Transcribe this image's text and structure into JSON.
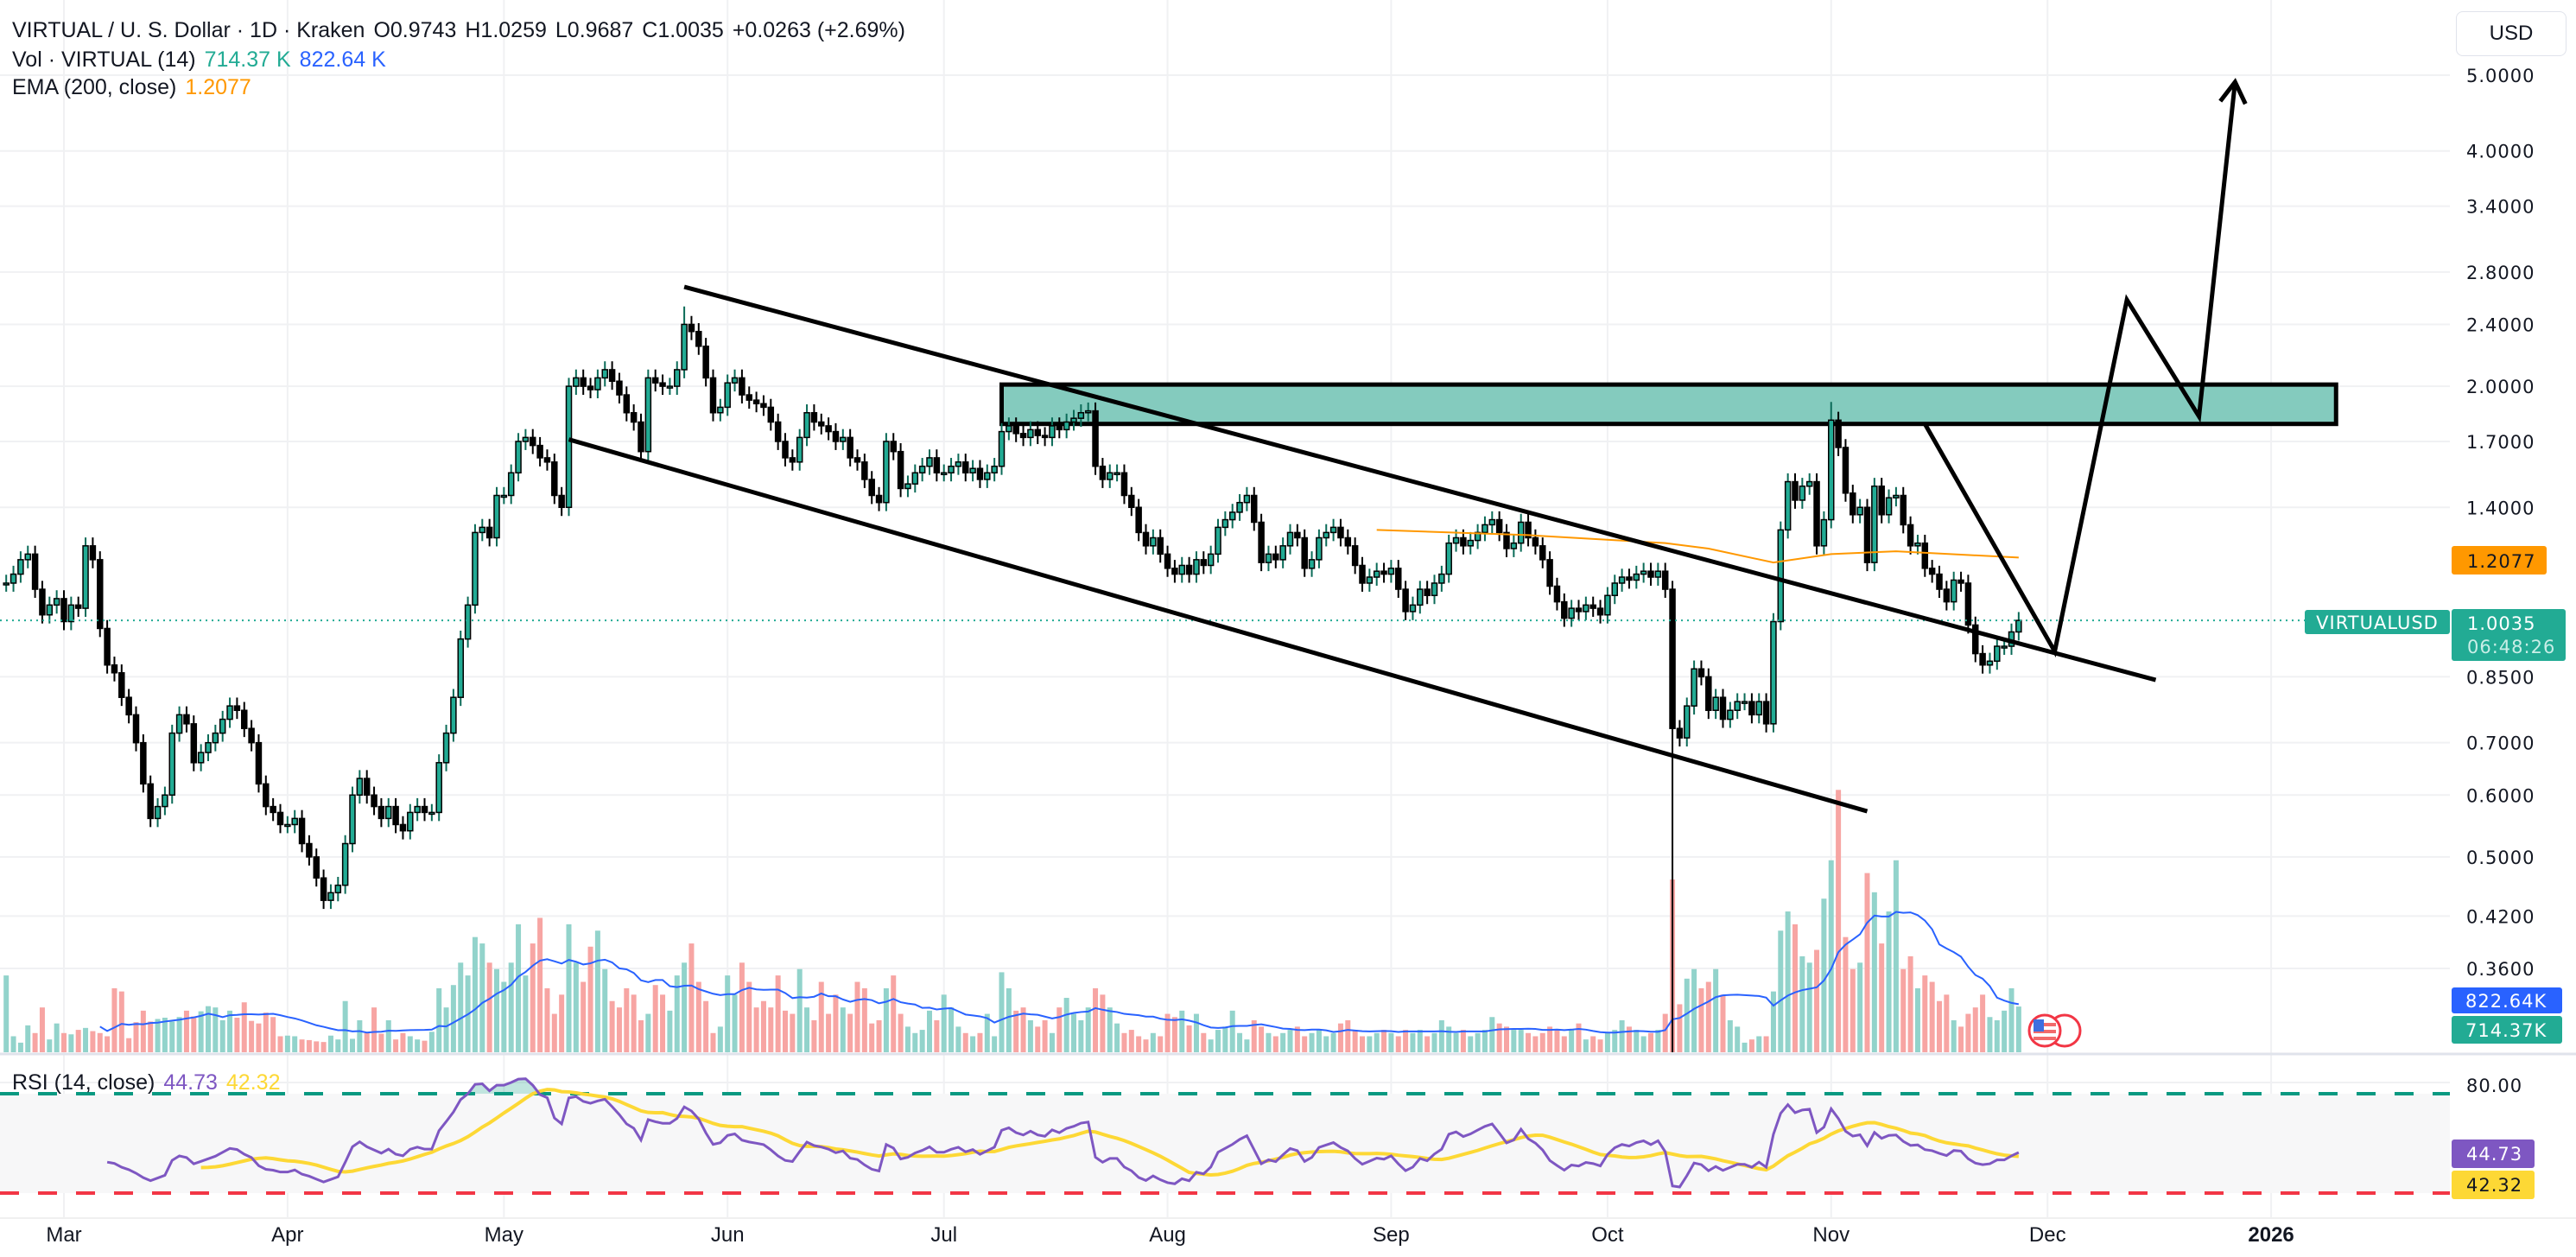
{
  "legend": {
    "symbol": "VIRTUAL / U. S. Dollar · 1D · Kraken",
    "open": "O0.9743",
    "high": "H1.0259",
    "low": "L0.9687",
    "close": "C1.0035",
    "change": "+0.0263 (+2.69%)",
    "vol_title": "Vol · VIRTUAL (14)",
    "vol_value": "714.37 K",
    "vol_ma_value": "822.64 K",
    "ema_title": "EMA (200, close)",
    "ema_value": "1.2077",
    "rsi_title": "RSI (14, close)",
    "rsi_value": "44.73",
    "rsi_ma_value": "42.32"
  },
  "currency_button": "USD",
  "colors": {
    "up": "#22ab94",
    "up_wick": "#0b6b58",
    "down": "#000000",
    "vol_up": "#92d3cb",
    "vol_down": "#f7a5a3",
    "vol_ma": "#2962ff",
    "ema": "#ff9800",
    "rsi": "#7e57c2",
    "rsi_ma": "#fdd835",
    "rsi_upper": "#089981",
    "rsi_lower": "#f23645",
    "zone": "#84cbbe",
    "price_line": "#22ab94"
  },
  "badges": {
    "symbol_tag": "VIRTUALUSD",
    "last_price": "1.0035",
    "countdown": "06:48:26",
    "ema": "1.2077",
    "vol_ma": "822.64K",
    "vol": "714.37K",
    "rsi": "44.73",
    "rsi_ma": "42.32",
    "rsi_level": "80.00"
  },
  "chart_data": {
    "type": "candlestick",
    "title": "VIRTUAL / U. S. Dollar · 1D · Kraken",
    "y_scale": "log",
    "ylim": [
      0.36,
      5.0
    ],
    "grid": true,
    "start_date": "2025-02-21",
    "last_price": 1.0035,
    "price_ticks": [
      "5.0000",
      "4.0000",
      "3.4000",
      "2.8000",
      "2.4000",
      "2.0000",
      "1.7000",
      "1.4000",
      "0.8500",
      "0.7000",
      "0.6000",
      "0.5000",
      "0.4200",
      "0.3600"
    ],
    "time_axis": [
      {
        "label": "Mar",
        "date": "2025-03-01"
      },
      {
        "label": "Apr",
        "date": "2025-04-01"
      },
      {
        "label": "May",
        "date": "2025-05-01"
      },
      {
        "label": "Jun",
        "date": "2025-06-01"
      },
      {
        "label": "Jul",
        "date": "2025-07-01"
      },
      {
        "label": "Aug",
        "date": "2025-08-01"
      },
      {
        "label": "Sep",
        "date": "2025-09-01"
      },
      {
        "label": "Oct",
        "date": "2025-10-01"
      },
      {
        "label": "Nov",
        "date": "2025-11-01"
      },
      {
        "label": "Dec",
        "date": "2025-12-01"
      },
      {
        "label": "2026",
        "date": "2026-01-01"
      }
    ],
    "close": [
      1.12,
      1.15,
      1.2,
      1.22,
      1.1,
      1.02,
      1.05,
      1.07,
      1.0,
      1.05,
      1.04,
      1.25,
      1.2,
      0.98,
      0.88,
      0.86,
      0.8,
      0.76,
      0.7,
      0.62,
      0.56,
      0.58,
      0.6,
      0.72,
      0.76,
      0.74,
      0.66,
      0.68,
      0.7,
      0.72,
      0.75,
      0.78,
      0.77,
      0.73,
      0.7,
      0.62,
      0.58,
      0.57,
      0.55,
      0.55,
      0.56,
      0.52,
      0.5,
      0.47,
      0.44,
      0.45,
      0.46,
      0.52,
      0.6,
      0.63,
      0.6,
      0.58,
      0.56,
      0.58,
      0.55,
      0.54,
      0.57,
      0.58,
      0.57,
      0.57,
      0.66,
      0.72,
      0.8,
      0.95,
      1.05,
      1.3,
      1.32,
      1.28,
      1.45,
      1.45,
      1.55,
      1.7,
      1.72,
      1.68,
      1.62,
      1.6,
      1.45,
      1.4,
      2.0,
      2.05,
      2.0,
      1.98,
      2.05,
      2.1,
      2.03,
      1.95,
      1.85,
      1.8,
      1.65,
      2.05,
      2.02,
      2.0,
      2.0,
      2.1,
      2.4,
      2.35,
      2.25,
      2.05,
      1.85,
      1.88,
      2.02,
      2.05,
      1.95,
      1.92,
      1.9,
      1.88,
      1.8,
      1.7,
      1.62,
      1.6,
      1.72,
      1.85,
      1.8,
      1.78,
      1.75,
      1.7,
      1.72,
      1.62,
      1.6,
      1.52,
      1.45,
      1.42,
      1.7,
      1.65,
      1.48,
      1.5,
      1.55,
      1.58,
      1.62,
      1.55,
      1.55,
      1.58,
      1.6,
      1.55,
      1.57,
      1.52,
      1.55,
      1.58,
      1.75,
      1.78,
      1.74,
      1.72,
      1.76,
      1.73,
      1.72,
      1.78,
      1.76,
      1.8,
      1.82,
      1.85,
      1.86,
      1.58,
      1.52,
      1.55,
      1.55,
      1.45,
      1.4,
      1.3,
      1.25,
      1.28,
      1.22,
      1.17,
      1.15,
      1.18,
      1.15,
      1.2,
      1.18,
      1.22,
      1.32,
      1.35,
      1.38,
      1.42,
      1.45,
      1.34,
      1.19,
      1.22,
      1.2,
      1.25,
      1.3,
      1.28,
      1.17,
      1.2,
      1.28,
      1.3,
      1.32,
      1.28,
      1.25,
      1.18,
      1.12,
      1.14,
      1.16,
      1.15,
      1.17,
      1.1,
      1.03,
      1.05,
      1.1,
      1.08,
      1.12,
      1.15,
      1.26,
      1.28,
      1.25,
      1.27,
      1.3,
      1.33,
      1.35,
      1.3,
      1.24,
      1.26,
      1.34,
      1.28,
      1.25,
      1.2,
      1.11,
      1.06,
      1.01,
      1.04,
      1.03,
      1.05,
      1.04,
      1.02,
      1.08,
      1.12,
      1.14,
      1.13,
      1.15,
      1.16,
      1.14,
      1.16,
      1.1,
      0.73,
      0.71,
      0.78,
      0.87,
      0.85,
      0.77,
      0.8,
      0.75,
      0.77,
      0.79,
      0.79,
      0.76,
      0.79,
      0.74,
      1.0,
      1.31,
      1.51,
      1.43,
      1.49,
      1.51,
      1.25,
      1.35,
      1.81,
      1.67,
      1.46,
      1.37,
      1.4,
      1.19,
      1.49,
      1.37,
      1.44,
      1.45,
      1.33,
      1.25,
      1.26,
      1.17,
      1.15,
      1.1,
      1.06,
      1.13,
      1.12,
      0.99,
      0.91,
      0.88,
      0.89,
      0.93,
      0.93,
      0.97,
      1.0035
    ],
    "extremes": [
      {
        "date": "2025-05-26",
        "high": 2.53
      },
      {
        "date": "2025-10-10",
        "low": 0.28
      },
      {
        "date": "2025-11-01",
        "high": 1.91
      }
    ],
    "volume_k": [
      1200,
      250,
      150,
      420,
      300,
      700,
      200,
      450,
      300,
      280,
      350,
      380,
      330,
      300,
      250,
      1000,
      950,
      220,
      470,
      650,
      480,
      520,
      540,
      480,
      550,
      650,
      560,
      640,
      720,
      700,
      500,
      650,
      540,
      780,
      490,
      450,
      620,
      550,
      250,
      260,
      250,
      200,
      190,
      170,
      160,
      260,
      200,
      800,
      210,
      500,
      300,
      700,
      290,
      500,
      200,
      300,
      250,
      200,
      180,
      320,
      1000,
      700,
      1050,
      1400,
      1200,
      1800,
      1700,
      1400,
      1300,
      1100,
      1400,
      2000,
      1200,
      1700,
      2100,
      1000,
      600,
      900,
      2000,
      1400,
      1100,
      1650,
      1900,
      1300,
      800,
      700,
      1000,
      900,
      500,
      600,
      1050,
      900,
      650,
      1200,
      1400,
      1700,
      1100,
      800,
      300,
      400,
      1200,
      900,
      1400,
      1100,
      700,
      800,
      700,
      1200,
      650,
      600,
      1300,
      700,
      500,
      1100,
      600,
      900,
      700,
      600,
      1100,
      1000,
      450,
      500,
      1000,
      1200,
      600,
      400,
      300,
      350,
      650,
      500,
      900,
      700,
      400,
      300,
      250,
      300,
      600,
      250,
      1250,
      1000,
      650,
      700,
      500,
      400,
      500,
      300,
      700,
      850,
      600,
      500,
      700,
      1000,
      900,
      700,
      450,
      300,
      350,
      250,
      200,
      300,
      250,
      600,
      550,
      650,
      420,
      600,
      300,
      200,
      350,
      400,
      650,
      300,
      200,
      500,
      400,
      300,
      250,
      300,
      350,
      400,
      250,
      300,
      350,
      250,
      300,
      450,
      500,
      350,
      250,
      250,
      300,
      350,
      300,
      250,
      350,
      300,
      350,
      250,
      300,
      500,
      400,
      300,
      350,
      250,
      300,
      350,
      550,
      450,
      400,
      350,
      350,
      300,
      250,
      300,
      400,
      350,
      250,
      350,
      450,
      200,
      250,
      200,
      300,
      350,
      500,
      400,
      350,
      250,
      300,
      350,
      600,
      2700,
      750,
      1150,
      1300,
      1000,
      1100,
      1300,
      900,
      500,
      400,
      150,
      200,
      250,
      250,
      950,
      1900,
      2200,
      2000,
      1500,
      1400,
      1600,
      2400,
      3000,
      4100,
      1800,
      1300,
      1400,
      2800,
      2500,
      1700,
      2200,
      3000,
      1300,
      1500,
      1000,
      1200,
      1100,
      800,
      900,
      500,
      400,
      600,
      700,
      900,
      550,
      500,
      650,
      1000,
      714.37
    ],
    "ema200": [
      {
        "date": "2025-08-30",
        "value": 1.31
      },
      {
        "date": "2025-09-20",
        "value": 1.29
      },
      {
        "date": "2025-10-09",
        "value": 1.26
      },
      {
        "date": "2025-10-15",
        "value": 1.24
      },
      {
        "date": "2025-10-24",
        "value": 1.19
      },
      {
        "date": "2025-11-01",
        "value": 1.22
      },
      {
        "date": "2025-11-10",
        "value": 1.23
      },
      {
        "date": "2025-11-27",
        "value": 1.2077
      }
    ],
    "rsi_levels": {
      "upper": 80,
      "lower": 20
    },
    "drawings": {
      "upper_channel": [
        {
          "date": "2025-05-26",
          "price": 2.68
        },
        {
          "date": "2025-12-16",
          "price": 0.842
        }
      ],
      "lower_channel": [
        {
          "date": "2025-05-10",
          "price": 1.71
        },
        {
          "date": "2025-11-06",
          "price": 0.572
        }
      ],
      "resistance_zone": {
        "from": "2025-07-09",
        "to": "2026-01-10",
        "top": 2.01,
        "bottom": 1.79
      },
      "projection": [
        {
          "date": "2025-11-14",
          "price": 1.79
        },
        {
          "date": "2025-12-02",
          "price": 0.916
        },
        {
          "date": "2025-12-12",
          "price": 2.58
        },
        {
          "date": "2025-12-22",
          "price": 1.83
        },
        {
          "date": "2025-12-27",
          "price": 4.9
        }
      ]
    }
  }
}
